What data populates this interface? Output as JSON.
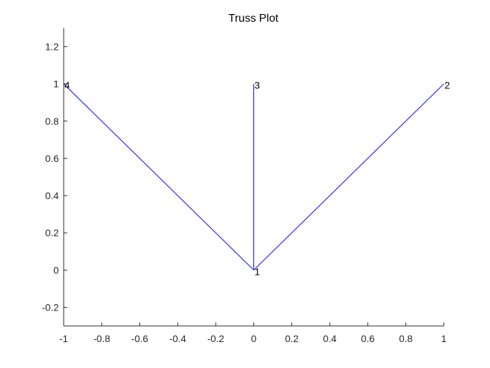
{
  "chart_data": {
    "type": "line",
    "title": "Truss Plot",
    "xlabel": "",
    "ylabel": "",
    "xlim": [
      -1,
      1
    ],
    "ylim": [
      -0.3,
      1.3
    ],
    "x_ticks": [
      -1,
      -0.8,
      -0.6,
      -0.4,
      -0.2,
      0,
      0.2,
      0.4,
      0.6,
      0.8,
      1
    ],
    "x_tick_labels": [
      "-1",
      "-0.8",
      "-0.6",
      "-0.4",
      "-0.2",
      "0",
      "0.2",
      "0.4",
      "0.6",
      "0.8",
      "1"
    ],
    "y_ticks": [
      -0.2,
      0,
      0.2,
      0.4,
      0.6,
      0.8,
      1,
      1.2
    ],
    "y_tick_labels": [
      "-0.2",
      "0",
      "0.2",
      "0.4",
      "0.6",
      "0.8",
      "1",
      "1.2"
    ],
    "grid": false,
    "line_color": "#0000ff",
    "axis_color": "#262626",
    "nodes": [
      {
        "label": "1",
        "x": 0,
        "y": 0
      },
      {
        "label": "2",
        "x": 1,
        "y": 1
      },
      {
        "label": "3",
        "x": 0,
        "y": 1
      },
      {
        "label": "4",
        "x": -1,
        "y": 1
      }
    ],
    "members": [
      {
        "from": "1",
        "to": "2"
      },
      {
        "from": "1",
        "to": "3"
      },
      {
        "from": "1",
        "to": "4"
      }
    ]
  }
}
